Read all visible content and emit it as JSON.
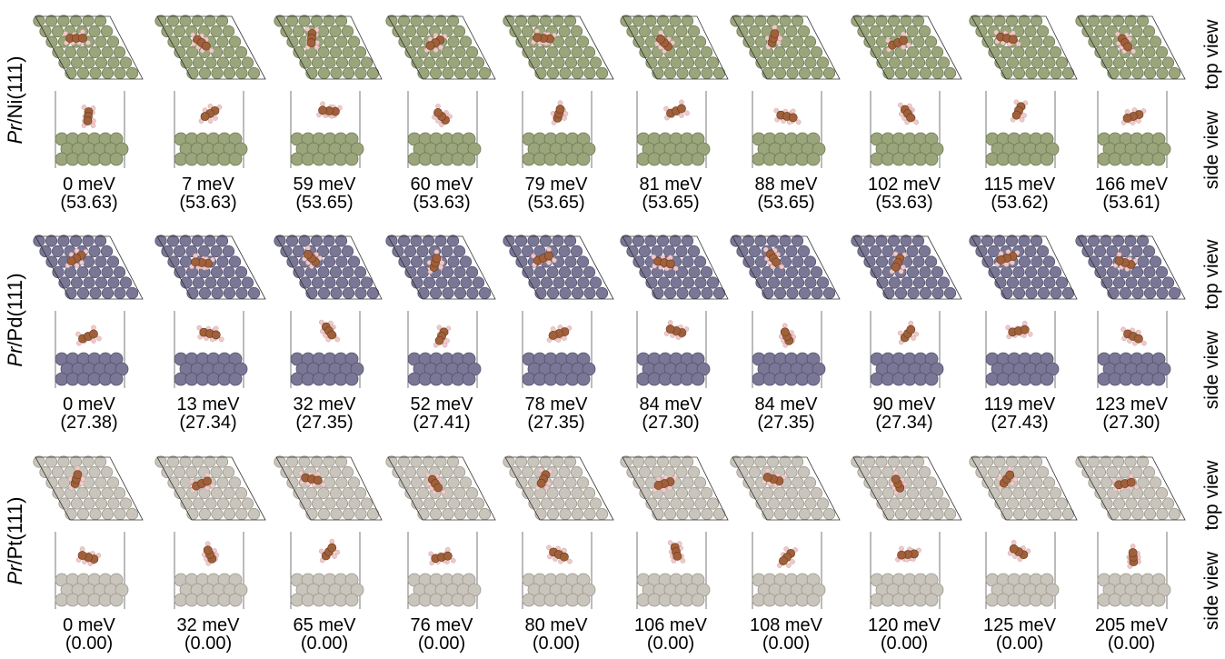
{
  "rows": [
    {
      "label_prefix": "Pr",
      "label_suffix": "/Ni(111)",
      "surface_color": "#9aa57c",
      "surface_dark": "#6f7a52",
      "configs": [
        {
          "energy": "0 meV",
          "value": "(53.63)"
        },
        {
          "energy": "7 meV",
          "value": "(53.63)"
        },
        {
          "energy": "59 meV",
          "value": "(53.65)"
        },
        {
          "energy": "60 meV",
          "value": "(53.63)"
        },
        {
          "energy": "79 meV",
          "value": "(53.65)"
        },
        {
          "energy": "81 meV",
          "value": "(53.65)"
        },
        {
          "energy": "88 meV",
          "value": "(53.65)"
        },
        {
          "energy": "102 meV",
          "value": "(53.63)"
        },
        {
          "energy": "115 meV",
          "value": "(53.62)"
        },
        {
          "energy": "166 meV",
          "value": "(53.61)"
        }
      ]
    },
    {
      "label_prefix": "Pr",
      "label_suffix": "/Pd(111)",
      "surface_color": "#7a7796",
      "surface_dark": "#55526e",
      "configs": [
        {
          "energy": "0 meV",
          "value": "(27.38)"
        },
        {
          "energy": "13 meV",
          "value": "(27.34)"
        },
        {
          "energy": "32 meV",
          "value": "(27.35)"
        },
        {
          "energy": "52 meV",
          "value": "(27.41)"
        },
        {
          "energy": "78 meV",
          "value": "(27.35)"
        },
        {
          "energy": "84 meV",
          "value": "(27.30)"
        },
        {
          "energy": "84 meV",
          "value": "(27.35)"
        },
        {
          "energy": "90 meV",
          "value": "(27.34)"
        },
        {
          "energy": "119 meV",
          "value": "(27.43)"
        },
        {
          "energy": "123 meV",
          "value": "(27.30)"
        }
      ]
    },
    {
      "label_prefix": "Pr",
      "label_suffix": "/Pt(111)",
      "surface_color": "#c9c5bc",
      "surface_dark": "#9d988d",
      "configs": [
        {
          "energy": "0 meV",
          "value": "(0.00)"
        },
        {
          "energy": "32 meV",
          "value": "(0.00)"
        },
        {
          "energy": "65 meV",
          "value": "(0.00)"
        },
        {
          "energy": "76 meV",
          "value": "(0.00)"
        },
        {
          "energy": "80 meV",
          "value": "(0.00)"
        },
        {
          "energy": "106 meV",
          "value": "(0.00)"
        },
        {
          "energy": "108 meV",
          "value": "(0.00)"
        },
        {
          "energy": "120 meV",
          "value": "(0.00)"
        },
        {
          "energy": "125 meV",
          "value": "(0.00)"
        },
        {
          "energy": "205 meV",
          "value": "(0.00)"
        }
      ]
    }
  ],
  "views": {
    "top": "top view",
    "side": "side view"
  },
  "molecule_colors": {
    "carbon": "#a0603a",
    "hydrogen": "#f2c8c8"
  }
}
